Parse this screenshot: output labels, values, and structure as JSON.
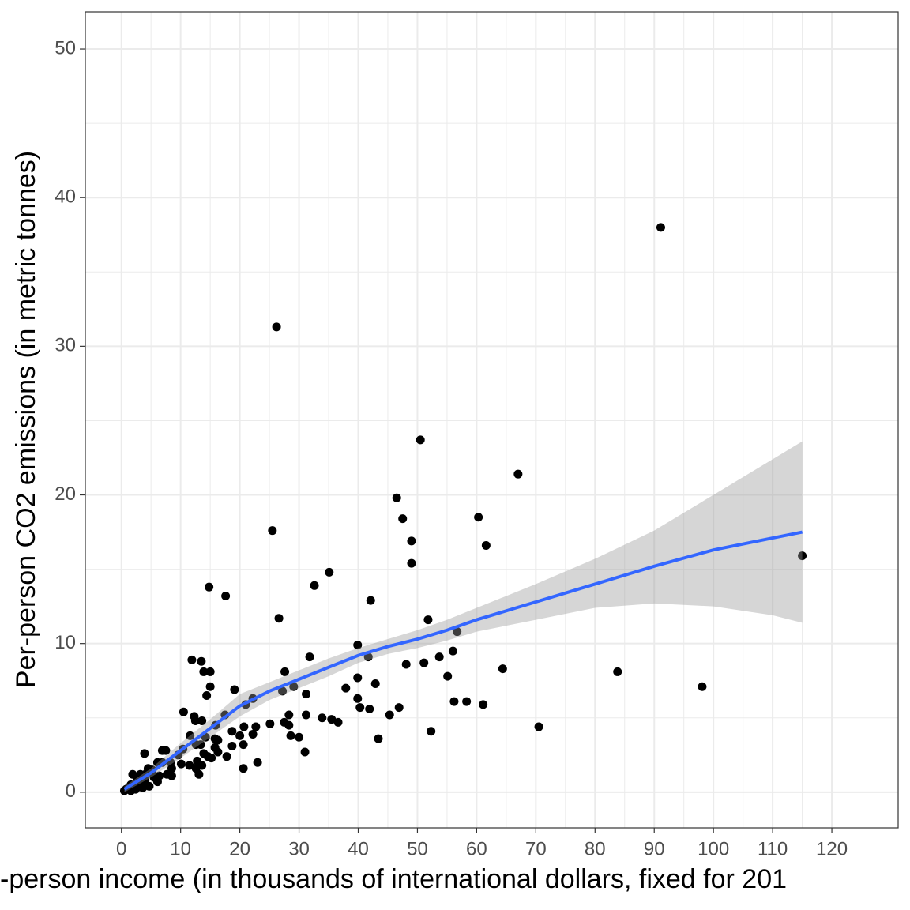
{
  "chart_data": {
    "type": "scatter",
    "x_label": "-person income (in thousands of international dollars, fixed for 201",
    "y_label": "Per-person CO2 emissions (in metric tonnes)",
    "xlim": [
      -6.1,
      131.2
    ],
    "ylim": [
      -2.4,
      52.5
    ],
    "xticks": [
      0,
      10,
      20,
      30,
      40,
      50,
      60,
      70,
      80,
      90,
      100,
      110,
      120
    ],
    "yticks": [
      0,
      10,
      20,
      30,
      40,
      50
    ],
    "grid": true,
    "color": "#000000",
    "x": [
      91.1,
      26.2,
      50.5,
      67.0,
      46.5,
      47.5,
      60.3,
      25.5,
      49.0,
      61.6,
      115.0,
      49.0,
      35.1,
      14.8,
      17.6,
      32.6,
      42.1,
      26.6,
      51.8,
      56.7,
      39.9,
      56.0,
      41.7,
      31.8,
      53.7,
      11.9,
      13.5,
      48.1,
      51.1,
      64.4,
      83.8,
      27.6,
      13.9,
      15.0,
      55.1,
      39.9,
      42.9,
      98.1,
      15.0,
      29.1,
      19.1,
      37.9,
      27.2,
      14.4,
      31.2,
      22.2,
      39.9,
      21.0,
      56.2,
      58.3,
      61.1,
      40.3,
      41.9,
      46.9,
      45.3,
      10.5,
      17.5,
      28.3,
      31.2,
      12.3,
      33.9,
      35.5,
      36.6,
      12.5,
      13.6,
      25.1,
      27.5,
      28.3,
      15.9,
      20.7,
      22.7,
      70.5,
      18.7,
      52.3,
      11.6,
      22.2,
      28.6,
      20.0,
      30.0,
      14.2,
      43.4,
      16.3,
      15.8,
      20.6,
      12.6,
      18.7,
      13.4,
      15.8,
      10.4,
      7.5,
      6.9,
      16.3,
      31.0,
      3.9,
      13.9,
      9.6,
      14.6,
      17.8,
      15.2,
      12.8,
      23.0,
      8.3,
      6.9,
      6.1,
      10.1,
      11.5,
      20.6,
      4.5,
      12.6,
      13.6,
      8.5,
      5.2,
      1.9,
      3.2,
      4.3,
      13.1,
      7.7,
      6.4,
      8.5,
      5.5,
      2.7,
      4.0,
      6.1,
      1.6,
      2.9,
      4.7,
      0.8,
      1.2,
      2.1,
      3.6,
      2.4,
      0.5,
      1.6
    ],
    "values": [
      38.0,
      31.3,
      23.7,
      21.4,
      19.8,
      18.4,
      18.5,
      17.6,
      16.9,
      16.6,
      15.9,
      15.4,
      14.8,
      13.8,
      13.2,
      13.9,
      12.9,
      11.7,
      11.6,
      10.8,
      9.9,
      9.5,
      9.1,
      9.1,
      9.1,
      8.9,
      8.8,
      8.6,
      8.7,
      8.3,
      8.1,
      8.1,
      8.1,
      8.1,
      7.8,
      7.7,
      7.3,
      7.1,
      7.1,
      7.1,
      6.9,
      7.0,
      6.8,
      6.5,
      6.6,
      6.3,
      6.3,
      5.9,
      6.1,
      6.1,
      5.9,
      5.7,
      5.6,
      5.7,
      5.2,
      5.4,
      5.2,
      5.2,
      5.2,
      5.1,
      5.0,
      4.9,
      4.7,
      4.8,
      4.8,
      4.6,
      4.7,
      4.5,
      4.5,
      4.4,
      4.4,
      4.4,
      4.1,
      4.1,
      3.8,
      3.9,
      3.8,
      3.8,
      3.7,
      3.7,
      3.6,
      3.5,
      3.6,
      3.2,
      3.2,
      3.1,
      3.2,
      3.0,
      2.9,
      2.8,
      2.8,
      2.7,
      2.7,
      2.6,
      2.6,
      2.5,
      2.4,
      2.4,
      2.3,
      2.1,
      2.0,
      2.0,
      2.0,
      2.0,
      1.9,
      1.8,
      1.6,
      1.6,
      1.6,
      1.8,
      1.6,
      1.5,
      1.2,
      1.2,
      1.3,
      1.2,
      1.2,
      1.1,
      1.1,
      1.0,
      0.8,
      0.8,
      0.7,
      0.5,
      0.5,
      0.4,
      0.2,
      0.3,
      0.4,
      0.3,
      0.2,
      0.1,
      0.1
    ],
    "smooth": {
      "color": "#3366ff",
      "band_color": "#999999",
      "x": [
        0.5,
        5,
        10,
        15,
        20,
        25,
        30,
        35,
        40,
        45,
        50,
        55,
        60,
        70,
        80,
        90,
        100,
        110,
        115
      ],
      "y": [
        0.2,
        1.3,
        2.8,
        4.3,
        5.8,
        6.8,
        7.6,
        8.4,
        9.2,
        9.8,
        10.3,
        10.9,
        11.6,
        12.8,
        14.0,
        15.2,
        16.3,
        17.1,
        17.5
      ],
      "lower": [
        0.0,
        1.0,
        2.3,
        3.7,
        5.1,
        6.2,
        7.0,
        7.8,
        8.7,
        9.3,
        9.7,
        10.2,
        10.8,
        11.6,
        12.4,
        12.7,
        12.5,
        11.9,
        11.4
      ],
      "upper": [
        0.4,
        1.6,
        3.3,
        4.9,
        6.6,
        7.4,
        8.2,
        9.0,
        9.7,
        10.3,
        10.9,
        11.6,
        12.4,
        14.0,
        15.7,
        17.6,
        20.0,
        22.4,
        23.6
      ]
    }
  }
}
